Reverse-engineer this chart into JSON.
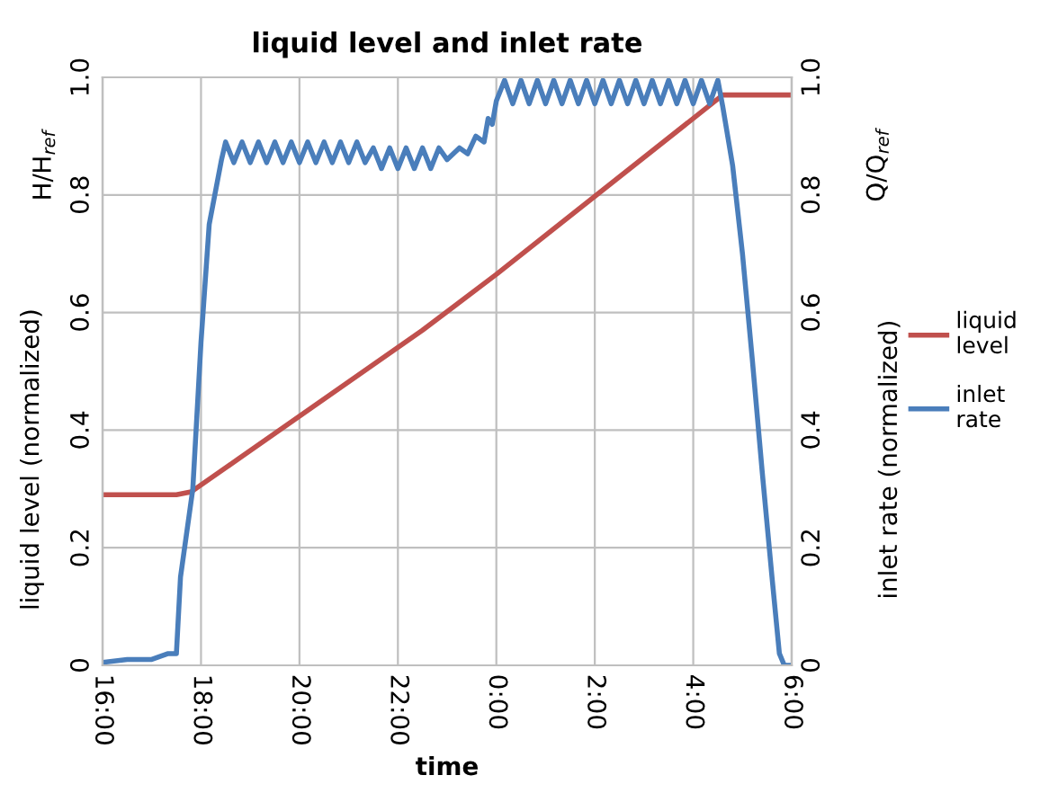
{
  "chart_data": {
    "type": "line",
    "title": "liquid level and inlet rate",
    "xlabel": "time",
    "ylabel": "liquid level (normalized)",
    "y2label": "inlet rate (normalized)",
    "annotations": [
      "H/H$_{ref}$",
      "Q/Q$_{ref}$"
    ],
    "xlim": [
      "2000-01-01T16:00",
      "2000-01-02T06:00"
    ],
    "xticks": [
      {
        "value": "2000-01-01T16:00",
        "label": "16:00"
      },
      {
        "value": "2000-01-01T18:00",
        "label": "18:00"
      },
      {
        "value": "2000-01-01T20:00",
        "label": "20:00"
      },
      {
        "value": "2000-01-01T22:00",
        "label": "22:00"
      },
      {
        "value": "2000-01-02T00:00",
        "label": "0:00"
      },
      {
        "value": "2000-01-02T02:00",
        "label": "2:00"
      },
      {
        "value": "2000-01-02T04:00",
        "label": "4:00"
      },
      {
        "value": "2000-01-02T06:00",
        "label": "6:00"
      }
    ],
    "ylim": [
      0,
      1
    ],
    "yticks": [
      0,
      0.2,
      0.4,
      0.6,
      0.8,
      {
        "value": 1,
        "label": "1.0"
      }
    ],
    "y2lim": [
      0,
      1
    ],
    "y2ticks": [
      0,
      0.2,
      0.4,
      0.6,
      0.8,
      {
        "value": 1,
        "label": "1.0"
      }
    ],
    "grid": true,
    "legend": "right",
    "marker": "none",
    "line_style": "solid",
    "series": [
      {
        "name": "liquid level",
        "color": "#c0504d",
        "x": [
          "2000-01-01T16:00",
          "2000-01-01T17:30",
          "2000-01-01T17:48",
          "2000-01-01T22:30",
          "2000-01-02T00:00",
          "2000-01-02T04:36",
          "2000-01-02T06:00"
        ],
        "values": [
          0.29,
          0.29,
          0.295,
          0.57,
          0.665,
          0.97,
          0.97
        ]
      },
      {
        "name": "inlet rate",
        "color": "#4a7ebb",
        "axis": "y2",
        "x": [
          "2000-01-01T16:00",
          "2000-01-01T16:30",
          "2000-01-01T17:00",
          "2000-01-01T17:20",
          "2000-01-01T17:30",
          "2000-01-01T17:35",
          "2000-01-01T17:50",
          "2000-01-01T18:00",
          "2000-01-01T18:10",
          "2000-01-01T18:25",
          "2000-01-01T18:30",
          "2000-01-01T18:40",
          "2000-01-01T18:50",
          "2000-01-01T19:00",
          "2000-01-01T19:10",
          "2000-01-01T19:20",
          "2000-01-01T19:30",
          "2000-01-01T19:40",
          "2000-01-01T19:50",
          "2000-01-01T20:00",
          "2000-01-01T20:10",
          "2000-01-01T20:20",
          "2000-01-01T20:30",
          "2000-01-01T20:40",
          "2000-01-01T20:50",
          "2000-01-01T21:00",
          "2000-01-01T21:10",
          "2000-01-01T21:20",
          "2000-01-01T21:30",
          "2000-01-01T21:40",
          "2000-01-01T21:50",
          "2000-01-01T22:00",
          "2000-01-01T22:10",
          "2000-01-01T22:20",
          "2000-01-01T22:30",
          "2000-01-01T22:40",
          "2000-01-01T22:50",
          "2000-01-01T23:00",
          "2000-01-01T23:15",
          "2000-01-01T23:25",
          "2000-01-01T23:35",
          "2000-01-01T23:45",
          "2000-01-01T23:50",
          "2000-01-01T23:55",
          "2000-01-02T00:00",
          "2000-01-02T00:10",
          "2000-01-02T00:20",
          "2000-01-02T00:30",
          "2000-01-02T00:40",
          "2000-01-02T00:50",
          "2000-01-02T01:00",
          "2000-01-02T01:10",
          "2000-01-02T01:20",
          "2000-01-02T01:30",
          "2000-01-02T01:40",
          "2000-01-02T01:50",
          "2000-01-02T02:00",
          "2000-01-02T02:10",
          "2000-01-02T02:20",
          "2000-01-02T02:30",
          "2000-01-02T02:40",
          "2000-01-02T02:50",
          "2000-01-02T03:00",
          "2000-01-02T03:10",
          "2000-01-02T03:20",
          "2000-01-02T03:30",
          "2000-01-02T03:40",
          "2000-01-02T03:50",
          "2000-01-02T04:00",
          "2000-01-02T04:10",
          "2000-01-02T04:20",
          "2000-01-02T04:30",
          "2000-01-02T04:36",
          "2000-01-02T04:48",
          "2000-01-02T05:00",
          "2000-01-02T05:12",
          "2000-01-02T05:24",
          "2000-01-02T05:36",
          "2000-01-02T05:45",
          "2000-01-02T05:51",
          "2000-01-02T06:00"
        ],
        "values": [
          0.005,
          0.01,
          0.01,
          0.02,
          0.02,
          0.15,
          0.3,
          0.55,
          0.75,
          0.86,
          0.89,
          0.855,
          0.89,
          0.855,
          0.89,
          0.855,
          0.89,
          0.855,
          0.89,
          0.855,
          0.89,
          0.855,
          0.89,
          0.855,
          0.89,
          0.855,
          0.89,
          0.855,
          0.88,
          0.845,
          0.88,
          0.845,
          0.88,
          0.845,
          0.88,
          0.845,
          0.88,
          0.86,
          0.88,
          0.87,
          0.9,
          0.89,
          0.93,
          0.92,
          0.96,
          0.995,
          0.955,
          0.995,
          0.955,
          0.995,
          0.955,
          0.995,
          0.955,
          0.995,
          0.955,
          0.995,
          0.955,
          0.995,
          0.955,
          0.995,
          0.955,
          0.995,
          0.955,
          0.995,
          0.955,
          0.995,
          0.955,
          0.995,
          0.955,
          0.995,
          0.955,
          0.995,
          0.95,
          0.85,
          0.7,
          0.52,
          0.33,
          0.15,
          0.02,
          0,
          0
        ]
      }
    ]
  }
}
